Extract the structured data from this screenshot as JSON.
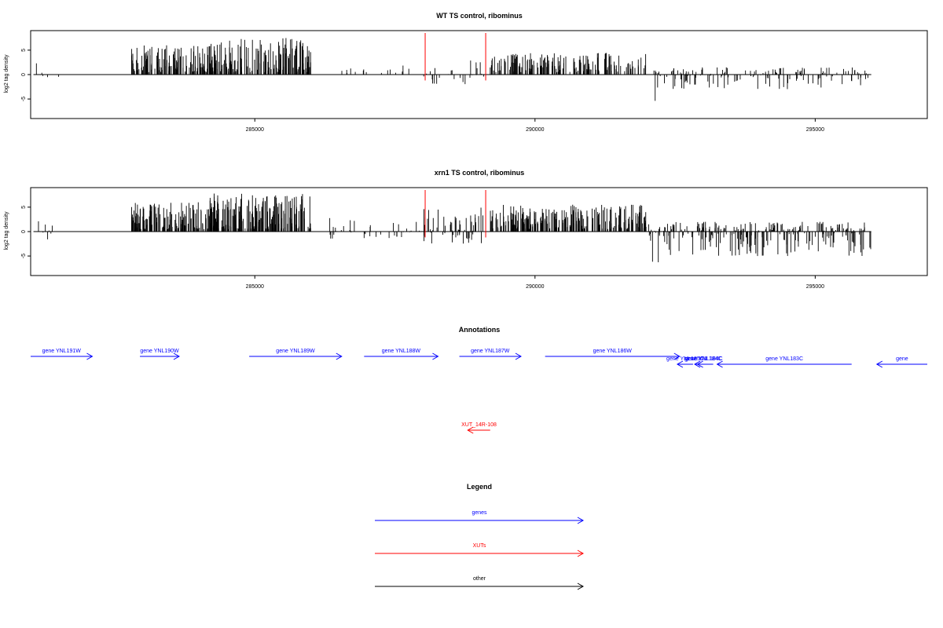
{
  "colors": {
    "gene": "#0000ff",
    "xut": "#ff0000",
    "other": "#000000",
    "track": "#000000",
    "marker": "#ff0000"
  },
  "chart_data": [
    {
      "type": "bar",
      "title": "WT TS control, ribominus",
      "ylabel": "log2 tag density",
      "xlim": [
        281000,
        297000
      ],
      "ylim": [
        -9,
        9
      ],
      "xticks": [
        285000,
        290000,
        295000
      ],
      "yticks": [
        5,
        0,
        -5
      ],
      "xtick_labels": [
        "285000",
        "290000",
        "295000"
      ],
      "ytick_labels": [
        "5",
        "0",
        "-5"
      ],
      "marker_lines": [
        288040,
        289120
      ],
      "segments": [
        {
          "from": 281050,
          "to": 281750,
          "n": 8,
          "min": -1.5,
          "max": 3,
          "seed": 11
        },
        {
          "from": 282800,
          "to": 284300,
          "n": 150,
          "min": 0.5,
          "max": 6,
          "seed": 12
        },
        {
          "from": 284200,
          "to": 286000,
          "n": 160,
          "min": 0.5,
          "max": 7.5,
          "seed": 13
        },
        {
          "from": 286300,
          "to": 288000,
          "n": 15,
          "min": 0.3,
          "max": 2.5,
          "seed": 14
        },
        {
          "from": 288000,
          "to": 289100,
          "n": 30,
          "min": -2.5,
          "max": 3,
          "seed": 15
        },
        {
          "from": 289200,
          "to": 292100,
          "n": 180,
          "min": 0.5,
          "max": 4.5,
          "seed": 16
        },
        {
          "from": 292100,
          "to": 292300,
          "n": 8,
          "min": -6.5,
          "max": 2.8,
          "seed": 17
        },
        {
          "from": 292300,
          "to": 296000,
          "n": 170,
          "min": -3,
          "max": 1.5,
          "seed": 18
        }
      ]
    },
    {
      "type": "bar",
      "title": "xrn1 TS control, ribominus",
      "ylabel": "log2 tag density",
      "xlim": [
        281000,
        297000
      ],
      "ylim": [
        -9,
        9
      ],
      "xticks": [
        285000,
        290000,
        295000
      ],
      "yticks": [
        5,
        0,
        -5
      ],
      "xtick_labels": [
        "285000",
        "290000",
        "295000"
      ],
      "ytick_labels": [
        "5",
        "0",
        "-5"
      ],
      "marker_lines": [
        288040,
        289120
      ],
      "segments": [
        {
          "from": 281050,
          "to": 281750,
          "n": 10,
          "min": -2.5,
          "max": 3,
          "seed": 21
        },
        {
          "from": 282800,
          "to": 284300,
          "n": 160,
          "min": 0.5,
          "max": 6,
          "seed": 22
        },
        {
          "from": 284200,
          "to": 286000,
          "n": 200,
          "min": 0.5,
          "max": 7.8,
          "seed": 23
        },
        {
          "from": 286300,
          "to": 288000,
          "n": 40,
          "min": -1.5,
          "max": 3,
          "seed": 24
        },
        {
          "from": 288000,
          "to": 289100,
          "n": 70,
          "min": -2.5,
          "max": 5,
          "seed": 25
        },
        {
          "from": 289200,
          "to": 292000,
          "n": 260,
          "min": 0.5,
          "max": 5.5,
          "seed": 26
        },
        {
          "from": 292000,
          "to": 292300,
          "n": 15,
          "min": -8.8,
          "max": 2.5,
          "seed": 27
        },
        {
          "from": 292300,
          "to": 296000,
          "n": 300,
          "min": -5,
          "max": 2,
          "seed": 28
        }
      ]
    }
  ],
  "annotations": {
    "title": "Annotations",
    "items": [
      {
        "label": "gene YNL191W",
        "type": "gene",
        "strand": "+",
        "start": 281000,
        "end": 282100,
        "row": 0
      },
      {
        "label": "gene YNL190W",
        "type": "gene",
        "strand": "+",
        "start": 282950,
        "end": 283650,
        "row": 0
      },
      {
        "label": "gene YNL189W",
        "type": "gene",
        "strand": "+",
        "start": 284900,
        "end": 286550,
        "row": 0
      },
      {
        "label": "gene YNL188W",
        "type": "gene",
        "strand": "+",
        "start": 286950,
        "end": 288270,
        "row": 0
      },
      {
        "label": "gene YNL187W",
        "type": "gene",
        "strand": "+",
        "start": 288650,
        "end": 289750,
        "row": 0
      },
      {
        "label": "gene YNL186W",
        "type": "gene",
        "strand": "+",
        "start": 290180,
        "end": 292580,
        "row": 0
      },
      {
        "label": "gene YNL185C",
        "type": "gene",
        "strand": "-",
        "start": 292540,
        "end": 292820,
        "row": 1
      },
      {
        "label": "gene YNL184C",
        "type": "gene",
        "strand": "-",
        "start": 292850,
        "end": 293180,
        "row": 1
      },
      {
        "label": "gene YNL184C",
        "type": "gene",
        "strand": "-",
        "start": 292900,
        "end": 293100,
        "row": 1
      },
      {
        "label": "gene YNL183C",
        "type": "gene",
        "strand": "-",
        "start": 293250,
        "end": 295650,
        "row": 1
      },
      {
        "label": "gene",
        "type": "gene",
        "strand": "-",
        "start": 296100,
        "end": 297000,
        "row": 1
      },
      {
        "label": "XUT_14R-108",
        "type": "xut",
        "strand": "-",
        "start": 288800,
        "end": 289200,
        "row": 2
      }
    ]
  },
  "legend": {
    "title": "Legend",
    "items": [
      {
        "label": "genes",
        "type": "gene"
      },
      {
        "label": "XUTs",
        "type": "xut"
      },
      {
        "label": "other",
        "type": "other"
      }
    ]
  }
}
